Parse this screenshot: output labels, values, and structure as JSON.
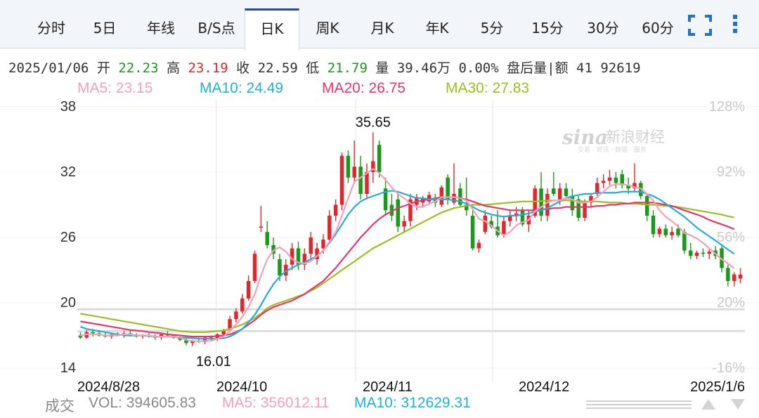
{
  "tabs": [
    {
      "label": "分时",
      "active": false
    },
    {
      "label": "5日",
      "active": false
    },
    {
      "label": "年线",
      "active": false
    },
    {
      "label": "B/S点",
      "active": false
    },
    {
      "label": "日K",
      "active": true
    },
    {
      "label": "周K",
      "active": false
    },
    {
      "label": "月K",
      "active": false
    },
    {
      "label": "年K",
      "active": false
    },
    {
      "label": "5分",
      "active": false
    },
    {
      "label": "15分",
      "active": false
    },
    {
      "label": "30分",
      "active": false
    },
    {
      "label": "60分",
      "active": false
    }
  ],
  "info": {
    "date": "2025/01/06",
    "open_label": "开",
    "open": "22.23",
    "high_label": "高",
    "high": "23.19",
    "close_label": "收",
    "close": "22.59",
    "low_label": "低",
    "low": "21.79",
    "vol_label": "量",
    "vol": "39.46万",
    "change": "0.00%",
    "after_label": "盘后量|额",
    "after_value": "41 92619"
  },
  "ma_legend": [
    {
      "text": "MA5: 23.15",
      "color": "#f4a0bb"
    },
    {
      "text": "MA10: 24.49",
      "color": "#1fb0d6"
    },
    {
      "text": "MA20: 26.75",
      "color": "#e8336d"
    },
    {
      "text": "MA30: 27.83",
      "color": "#9cbf1e"
    }
  ],
  "watermark": {
    "brand": "sina",
    "chinese": "新浪财经",
    "sub": "交易 · 资讯 · 数据 · 服务"
  },
  "volume_row": {
    "label": "成交",
    "vol": "VOL: 394605.83",
    "ma5": "MA5: 356012.11",
    "ma10": "MA10: 312629.31",
    "vol_color": "#888888",
    "ma5_color": "#f4a0bb",
    "ma10_color": "#1fb0d6"
  },
  "chart_data": {
    "type": "candlestick",
    "x_tick_labels": [
      "2024/8/28",
      "2024/10",
      "2024/11",
      "2024/12",
      "2025/1/6"
    ],
    "y_ticks_left": [
      "38",
      "32",
      "26",
      "20",
      "14"
    ],
    "y_ticks_right": [
      "128%",
      "92%",
      "56%",
      "20%",
      "-16%"
    ],
    "ylim": [
      14,
      38
    ],
    "max_annotation": "35.65",
    "min_annotation": "16.01",
    "up_color": "#e0282c",
    "down_color": "#1a9a1a",
    "candles": [
      {
        "o": 17.0,
        "h": 17.3,
        "l": 16.7,
        "c": 16.8
      },
      {
        "o": 16.8,
        "h": 17.5,
        "l": 16.7,
        "c": 17.3
      },
      {
        "o": 17.3,
        "h": 17.6,
        "l": 16.9,
        "c": 17.2
      },
      {
        "o": 17.2,
        "h": 17.5,
        "l": 16.9,
        "c": 17.0
      },
      {
        "o": 17.0,
        "h": 17.3,
        "l": 16.8,
        "c": 16.9
      },
      {
        "o": 16.9,
        "h": 17.2,
        "l": 16.7,
        "c": 17.1
      },
      {
        "o": 17.1,
        "h": 17.3,
        "l": 16.9,
        "c": 17.0
      },
      {
        "o": 17.0,
        "h": 17.4,
        "l": 16.8,
        "c": 17.2
      },
      {
        "o": 17.2,
        "h": 17.4,
        "l": 16.9,
        "c": 17.0
      },
      {
        "o": 17.0,
        "h": 17.2,
        "l": 16.8,
        "c": 16.9
      },
      {
        "o": 16.9,
        "h": 17.1,
        "l": 16.7,
        "c": 17.0
      },
      {
        "o": 17.0,
        "h": 17.2,
        "l": 16.8,
        "c": 16.9
      },
      {
        "o": 16.9,
        "h": 17.1,
        "l": 16.6,
        "c": 16.8
      },
      {
        "o": 16.8,
        "h": 17.2,
        "l": 16.6,
        "c": 17.1
      },
      {
        "o": 17.1,
        "h": 17.4,
        "l": 16.9,
        "c": 17.0
      },
      {
        "o": 17.0,
        "h": 17.1,
        "l": 16.7,
        "c": 16.8
      },
      {
        "o": 16.8,
        "h": 16.9,
        "l": 16.5,
        "c": 16.6
      },
      {
        "o": 16.6,
        "h": 16.8,
        "l": 16.1,
        "c": 16.3
      },
      {
        "o": 16.3,
        "h": 16.6,
        "l": 16.01,
        "c": 16.5
      },
      {
        "o": 16.5,
        "h": 16.8,
        "l": 16.3,
        "c": 16.4
      },
      {
        "o": 16.4,
        "h": 16.9,
        "l": 16.2,
        "c": 16.8
      },
      {
        "o": 16.8,
        "h": 17.0,
        "l": 16.5,
        "c": 16.7
      },
      {
        "o": 16.7,
        "h": 17.2,
        "l": 16.5,
        "c": 17.1
      },
      {
        "o": 17.1,
        "h": 17.6,
        "l": 16.9,
        "c": 17.5
      },
      {
        "o": 17.5,
        "h": 18.8,
        "l": 17.3,
        "c": 18.5
      },
      {
        "o": 18.5,
        "h": 19.5,
        "l": 18.2,
        "c": 19.2
      },
      {
        "o": 19.2,
        "h": 20.8,
        "l": 19.0,
        "c": 20.4
      },
      {
        "o": 20.4,
        "h": 22.5,
        "l": 20.2,
        "c": 22.0
      },
      {
        "o": 22.0,
        "h": 24.8,
        "l": 21.8,
        "c": 24.5
      },
      {
        "o": 27.0,
        "h": 28.9,
        "l": 26.5,
        "c": 27.0
      },
      {
        "o": 26.5,
        "h": 27.5,
        "l": 25.0,
        "c": 25.3
      },
      {
        "o": 25.3,
        "h": 26.0,
        "l": 24.0,
        "c": 24.5
      },
      {
        "o": 24.0,
        "h": 24.5,
        "l": 22.0,
        "c": 22.5
      },
      {
        "o": 22.5,
        "h": 24.0,
        "l": 22.0,
        "c": 23.5
      },
      {
        "o": 23.5,
        "h": 25.5,
        "l": 23.0,
        "c": 25.0
      },
      {
        "o": 25.0,
        "h": 25.6,
        "l": 23.0,
        "c": 23.5
      },
      {
        "o": 23.5,
        "h": 25.0,
        "l": 23.0,
        "c": 24.5
      },
      {
        "o": 24.5,
        "h": 26.5,
        "l": 24.0,
        "c": 26.0
      },
      {
        "o": 24.0,
        "h": 25.5,
        "l": 23.5,
        "c": 25.0
      },
      {
        "o": 25.0,
        "h": 26.3,
        "l": 24.5,
        "c": 25.8
      },
      {
        "o": 25.8,
        "h": 28.5,
        "l": 25.5,
        "c": 28.0
      },
      {
        "o": 28.0,
        "h": 29.5,
        "l": 27.5,
        "c": 29.0
      },
      {
        "o": 29.0,
        "h": 33.8,
        "l": 28.5,
        "c": 33.5
      },
      {
        "o": 33.5,
        "h": 34.0,
        "l": 31.0,
        "c": 31.5
      },
      {
        "o": 31.5,
        "h": 34.9,
        "l": 31.0,
        "c": 32.5
      },
      {
        "o": 32.5,
        "h": 33.5,
        "l": 29.5,
        "c": 30.0
      },
      {
        "o": 30.0,
        "h": 32.8,
        "l": 29.5,
        "c": 32.0
      },
      {
        "o": 32.0,
        "h": 35.65,
        "l": 31.0,
        "c": 33.0
      },
      {
        "o": 34.5,
        "h": 34.9,
        "l": 31.5,
        "c": 32.0
      },
      {
        "o": 30.5,
        "h": 31.5,
        "l": 28.0,
        "c": 28.5
      },
      {
        "o": 29.0,
        "h": 30.0,
        "l": 27.5,
        "c": 28.0
      },
      {
        "o": 29.5,
        "h": 30.0,
        "l": 26.5,
        "c": 27.0
      },
      {
        "o": 27.0,
        "h": 28.0,
        "l": 26.5,
        "c": 27.5
      },
      {
        "o": 27.5,
        "h": 30.0,
        "l": 27.0,
        "c": 29.5
      },
      {
        "o": 29.0,
        "h": 30.0,
        "l": 28.5,
        "c": 29.7
      },
      {
        "o": 29.2,
        "h": 29.8,
        "l": 28.8,
        "c": 29.6
      },
      {
        "o": 29.3,
        "h": 30.2,
        "l": 29.0,
        "c": 29.9
      },
      {
        "o": 29.6,
        "h": 30.0,
        "l": 28.8,
        "c": 29.2
      },
      {
        "o": 29.0,
        "h": 30.8,
        "l": 28.8,
        "c": 30.6
      },
      {
        "o": 31.5,
        "h": 31.8,
        "l": 29.0,
        "c": 29.5
      },
      {
        "o": 29.2,
        "h": 32.8,
        "l": 29.0,
        "c": 30.0
      },
      {
        "o": 30.5,
        "h": 31.0,
        "l": 28.8,
        "c": 29.0
      },
      {
        "o": 29.0,
        "h": 31.5,
        "l": 28.0,
        "c": 28.5
      },
      {
        "o": 28.0,
        "h": 28.5,
        "l": 24.8,
        "c": 25.0
      },
      {
        "o": 25.0,
        "h": 25.8,
        "l": 24.6,
        "c": 25.5
      },
      {
        "o": 26.5,
        "h": 28.5,
        "l": 26.3,
        "c": 28.0
      },
      {
        "o": 27.5,
        "h": 28.0,
        "l": 26.8,
        "c": 27.0
      },
      {
        "o": 27.0,
        "h": 28.5,
        "l": 26.0,
        "c": 26.2
      },
      {
        "o": 26.2,
        "h": 28.0,
        "l": 26.0,
        "c": 27.5
      },
      {
        "o": 27.5,
        "h": 28.5,
        "l": 27.0,
        "c": 28.0
      },
      {
        "o": 28.0,
        "h": 28.8,
        "l": 27.5,
        "c": 28.2
      },
      {
        "o": 28.5,
        "h": 28.8,
        "l": 27.0,
        "c": 27.2
      },
      {
        "o": 27.2,
        "h": 28.5,
        "l": 26.5,
        "c": 28.0
      },
      {
        "o": 28.0,
        "h": 30.8,
        "l": 27.8,
        "c": 30.5
      },
      {
        "o": 30.5,
        "h": 32.0,
        "l": 27.5,
        "c": 28.0
      },
      {
        "o": 28.0,
        "h": 30.5,
        "l": 27.5,
        "c": 30.0
      },
      {
        "o": 30.5,
        "h": 32.0,
        "l": 29.8,
        "c": 30.0
      },
      {
        "o": 29.5,
        "h": 31.0,
        "l": 29.0,
        "c": 30.5
      },
      {
        "o": 30.5,
        "h": 31.0,
        "l": 29.5,
        "c": 29.8
      },
      {
        "o": 29.8,
        "h": 30.5,
        "l": 28.0,
        "c": 28.5
      },
      {
        "o": 29.5,
        "h": 29.8,
        "l": 27.5,
        "c": 27.8
      },
      {
        "o": 27.8,
        "h": 29.5,
        "l": 27.5,
        "c": 29.2
      },
      {
        "o": 29.2,
        "h": 30.0,
        "l": 28.8,
        "c": 29.8
      },
      {
        "o": 30.0,
        "h": 31.5,
        "l": 29.8,
        "c": 31.0
      },
      {
        "o": 31.0,
        "h": 31.8,
        "l": 30.5,
        "c": 31.2
      },
      {
        "o": 31.2,
        "h": 32.2,
        "l": 30.8,
        "c": 31.5
      },
      {
        "o": 31.5,
        "h": 32.0,
        "l": 30.5,
        "c": 31.0
      },
      {
        "o": 31.8,
        "h": 32.2,
        "l": 30.5,
        "c": 30.8
      },
      {
        "o": 30.8,
        "h": 31.5,
        "l": 30.0,
        "c": 30.5
      },
      {
        "o": 30.5,
        "h": 32.8,
        "l": 30.2,
        "c": 31.0
      },
      {
        "o": 31.0,
        "h": 31.2,
        "l": 29.5,
        "c": 29.8
      },
      {
        "o": 29.8,
        "h": 30.0,
        "l": 27.5,
        "c": 28.0
      },
      {
        "o": 28.0,
        "h": 28.5,
        "l": 26.0,
        "c": 26.3
      },
      {
        "o": 26.3,
        "h": 27.0,
        "l": 26.0,
        "c": 26.8
      },
      {
        "o": 26.8,
        "h": 27.2,
        "l": 26.0,
        "c": 26.2
      },
      {
        "o": 26.2,
        "h": 27.0,
        "l": 25.8,
        "c": 26.5
      },
      {
        "o": 26.8,
        "h": 27.2,
        "l": 26.0,
        "c": 26.2
      },
      {
        "o": 26.5,
        "h": 26.8,
        "l": 24.5,
        "c": 24.8
      },
      {
        "o": 24.8,
        "h": 25.5,
        "l": 24.0,
        "c": 24.3
      },
      {
        "o": 24.3,
        "h": 24.8,
        "l": 24.0,
        "c": 24.6
      },
      {
        "o": 24.6,
        "h": 25.0,
        "l": 24.2,
        "c": 24.5
      },
      {
        "o": 24.5,
        "h": 25.0,
        "l": 24.0,
        "c": 24.7
      },
      {
        "o": 24.8,
        "h": 25.2,
        "l": 24.0,
        "c": 24.3
      },
      {
        "o": 25.0,
        "h": 25.2,
        "l": 22.8,
        "c": 23.2
      },
      {
        "o": 23.2,
        "h": 23.5,
        "l": 21.5,
        "c": 22.0
      },
      {
        "o": 22.0,
        "h": 22.8,
        "l": 21.5,
        "c": 22.6
      },
      {
        "o": 22.23,
        "h": 23.19,
        "l": 21.79,
        "c": 22.59
      }
    ],
    "ma_lines": [
      {
        "name": "MA30",
        "color": "#9cbf1e",
        "values": [
          19.0,
          18.9,
          18.8,
          18.7,
          18.6,
          18.5,
          18.4,
          18.3,
          18.2,
          18.1,
          18.0,
          17.9,
          17.8,
          17.7,
          17.6,
          17.5,
          17.4,
          17.35,
          17.3,
          17.3,
          17.3,
          17.35,
          17.4,
          17.45,
          17.6,
          17.8,
          18.0,
          18.3,
          18.6,
          19.0,
          19.5,
          19.8,
          20.0,
          20.2,
          20.4,
          20.6,
          20.8,
          21.1,
          21.4,
          21.8,
          22.2,
          22.6,
          23.0,
          23.4,
          23.8,
          24.2,
          24.6,
          25.0,
          25.3,
          25.6,
          25.9,
          26.2,
          26.5,
          26.8,
          27.1,
          27.4,
          27.7,
          28.0,
          28.3,
          28.5,
          28.7,
          28.8,
          28.9,
          29.0,
          29.0,
          29.0,
          29.05,
          29.1,
          29.15,
          29.2,
          29.25,
          29.3,
          29.3,
          29.3,
          29.35,
          29.4,
          29.4,
          29.4,
          29.4,
          29.4,
          29.35,
          29.3,
          29.3,
          29.3,
          29.25,
          29.2,
          29.2,
          29.2,
          29.1,
          29.1,
          29.05,
          29.0,
          29.0,
          28.95,
          28.9,
          28.85,
          28.8,
          28.7,
          28.6,
          28.5,
          28.4,
          28.3,
          28.2,
          28.1,
          27.95,
          27.83
        ]
      },
      {
        "name": "MA20",
        "color": "#e8336d",
        "values": [
          18.3,
          18.2,
          18.1,
          18.0,
          17.9,
          17.8,
          17.7,
          17.6,
          17.5,
          17.45,
          17.4,
          17.3,
          17.25,
          17.2,
          17.1,
          17.05,
          17.0,
          16.95,
          16.9,
          16.9,
          16.9,
          16.9,
          16.95,
          17.0,
          17.1,
          17.3,
          17.6,
          18.0,
          18.4,
          18.9,
          19.3,
          19.6,
          19.8,
          20.0,
          20.2,
          20.5,
          20.8,
          21.2,
          21.6,
          22.0,
          22.6,
          23.2,
          23.9,
          24.6,
          25.3,
          26.0,
          26.6,
          27.2,
          27.7,
          28.1,
          28.4,
          28.7,
          28.9,
          29.1,
          29.3,
          29.4,
          29.5,
          29.6,
          29.7,
          29.7,
          29.7,
          29.6,
          29.5,
          29.3,
          29.1,
          28.9,
          28.8,
          28.7,
          28.6,
          28.5,
          28.5,
          28.5,
          28.5,
          28.5,
          28.6,
          28.6,
          28.7,
          28.7,
          28.8,
          28.8,
          28.8,
          28.8,
          28.8,
          28.9,
          28.9,
          29.0,
          29.0,
          29.1,
          29.1,
          29.2,
          29.2,
          29.2,
          29.2,
          29.1,
          29.0,
          28.9,
          28.7,
          28.5,
          28.3,
          28.1,
          27.9,
          27.6,
          27.4,
          27.2,
          27.0,
          26.75
        ]
      },
      {
        "name": "MA10",
        "color": "#1fb0d6",
        "values": [
          17.8,
          17.6,
          17.5,
          17.4,
          17.3,
          17.2,
          17.1,
          17.0,
          17.0,
          17.0,
          17.0,
          16.95,
          16.9,
          16.9,
          16.9,
          16.85,
          16.8,
          16.8,
          16.75,
          16.7,
          16.7,
          16.7,
          16.7,
          16.75,
          16.9,
          17.2,
          17.6,
          18.2,
          18.9,
          19.8,
          20.8,
          21.7,
          22.4,
          22.9,
          23.2,
          23.5,
          23.7,
          24.0,
          24.3,
          24.8,
          25.5,
          26.3,
          27.2,
          28.1,
          28.8,
          29.3,
          29.6,
          29.8,
          30.0,
          30.2,
          30.3,
          30.2,
          30.0,
          29.8,
          29.6,
          29.6,
          29.5,
          29.5,
          29.5,
          29.5,
          29.4,
          29.3,
          29.1,
          28.8,
          28.5,
          28.3,
          28.1,
          28.0,
          27.9,
          28.0,
          28.0,
          28.1,
          28.2,
          28.4,
          28.5,
          28.7,
          29.0,
          29.3,
          29.6,
          29.8,
          29.9,
          30.0,
          30.0,
          30.1,
          30.1,
          30.1,
          30.1,
          30.2,
          30.2,
          30.2,
          30.2,
          30.0,
          29.8,
          29.5,
          29.1,
          28.7,
          28.3,
          27.9,
          27.4,
          26.9,
          26.5,
          26.1,
          25.7,
          25.3,
          24.9,
          24.49
        ]
      },
      {
        "name": "MA5",
        "color": "#f4a0bb",
        "values": [
          17.0,
          17.1,
          17.1,
          17.1,
          17.0,
          17.0,
          17.0,
          17.1,
          17.1,
          17.0,
          17.0,
          17.0,
          16.9,
          16.9,
          16.9,
          16.9,
          16.8,
          16.6,
          16.5,
          16.45,
          16.5,
          16.5,
          16.7,
          16.9,
          17.4,
          18.0,
          18.7,
          19.6,
          20.8,
          22.5,
          24.0,
          24.8,
          25.1,
          24.7,
          24.0,
          23.7,
          23.6,
          23.8,
          24.3,
          24.8,
          25.6,
          26.5,
          28.0,
          29.6,
          31.1,
          31.5,
          31.9,
          32.3,
          31.9,
          31.3,
          30.6,
          30.0,
          29.6,
          29.1,
          28.8,
          28.8,
          29.1,
          29.3,
          29.7,
          29.7,
          29.7,
          29.6,
          29.4,
          28.6,
          27.7,
          27.5,
          27.1,
          26.6,
          26.2,
          26.5,
          27.1,
          27.4,
          27.6,
          28.4,
          28.8,
          29.2,
          29.4,
          29.4,
          29.6,
          29.5,
          29.2,
          29.2,
          29.3,
          29.7,
          30.2,
          30.7,
          30.9,
          30.9,
          30.8,
          30.6,
          30.5,
          30.0,
          29.4,
          28.5,
          27.9,
          27.5,
          27.0,
          26.4,
          26.2,
          25.9,
          25.5,
          25.0,
          24.5,
          24.0,
          23.6,
          23.15
        ]
      }
    ]
  }
}
